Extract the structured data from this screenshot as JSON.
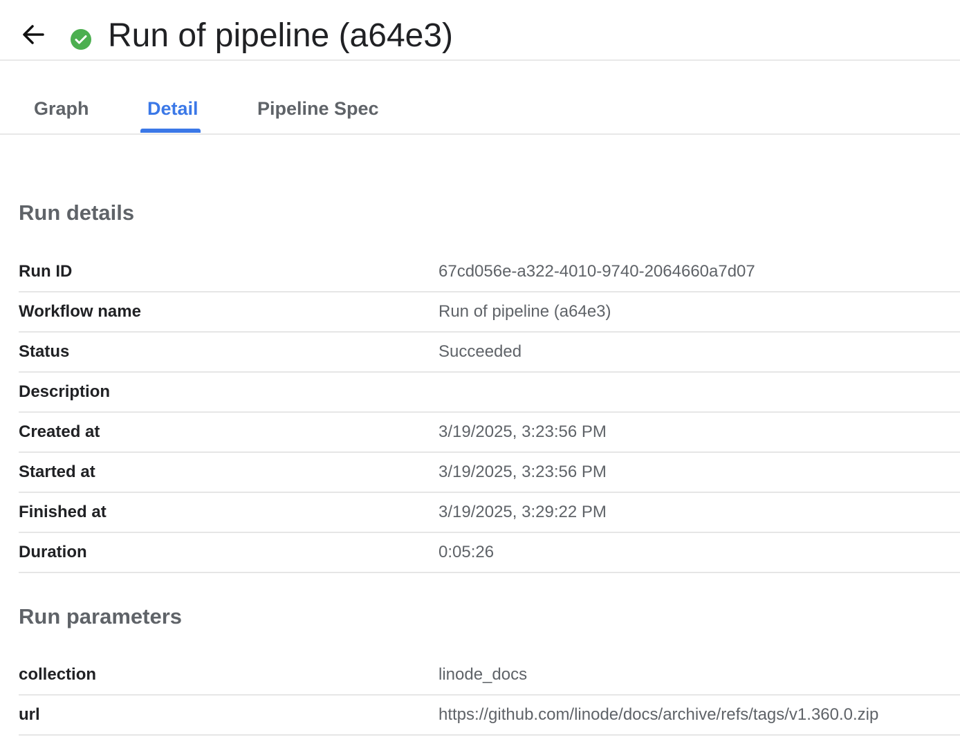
{
  "header": {
    "title": "Run of pipeline (a64e3)",
    "status_icon": "check-circle-icon",
    "status_color": "#4caf50"
  },
  "tabs": [
    {
      "label": "Graph",
      "active": false
    },
    {
      "label": "Detail",
      "active": true
    },
    {
      "label": "Pipeline Spec",
      "active": false
    }
  ],
  "run_details": {
    "title": "Run details",
    "rows": [
      {
        "key": "Run ID",
        "value": "67cd056e-a322-4010-9740-2064660a7d07"
      },
      {
        "key": "Workflow name",
        "value": "Run of pipeline (a64e3)"
      },
      {
        "key": "Status",
        "value": "Succeeded"
      },
      {
        "key": "Description",
        "value": ""
      },
      {
        "key": "Created at",
        "value": "3/19/2025, 3:23:56 PM"
      },
      {
        "key": "Started at",
        "value": "3/19/2025, 3:23:56 PM"
      },
      {
        "key": "Finished at",
        "value": "3/19/2025, 3:29:22 PM"
      },
      {
        "key": "Duration",
        "value": "0:05:26"
      }
    ]
  },
  "run_parameters": {
    "title": "Run parameters",
    "rows": [
      {
        "key": "collection",
        "value": "linode_docs"
      },
      {
        "key": "url",
        "value": "https://github.com/linode/docs/archive/refs/tags/v1.360.0.zip"
      }
    ]
  },
  "colors": {
    "accent": "#3b78e7",
    "success": "#4caf50"
  }
}
